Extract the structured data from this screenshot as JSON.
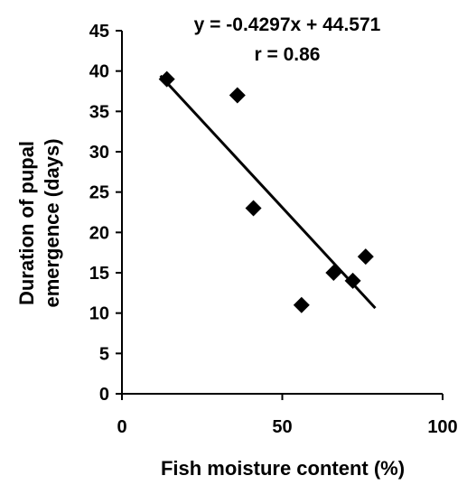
{
  "chart_data": {
    "type": "scatter",
    "title": "",
    "xlabel": "Fish moisture content (%)",
    "ylabel_lines": [
      "Duration of pupal",
      "emergence (days)"
    ],
    "xlim": [
      0,
      100
    ],
    "ylim": [
      0,
      45
    ],
    "x_ticks": [
      0,
      50,
      100
    ],
    "y_ticks": [
      0,
      5,
      10,
      15,
      20,
      25,
      30,
      35,
      40,
      45
    ],
    "grid": false,
    "legend": "none",
    "marker": "diamond",
    "marker_color": "#000000",
    "points": [
      {
        "x": 14,
        "y": 39
      },
      {
        "x": 36,
        "y": 37
      },
      {
        "x": 41,
        "y": 23
      },
      {
        "x": 56,
        "y": 11
      },
      {
        "x": 66,
        "y": 15
      },
      {
        "x": 72,
        "y": 14
      },
      {
        "x": 76,
        "y": 17
      }
    ],
    "trendline": {
      "slope": -0.4297,
      "intercept": 44.571,
      "x_range": [
        12,
        79
      ]
    },
    "annotations": [
      "y = -0.4297x + 44.571",
      "r = 0.86"
    ]
  }
}
